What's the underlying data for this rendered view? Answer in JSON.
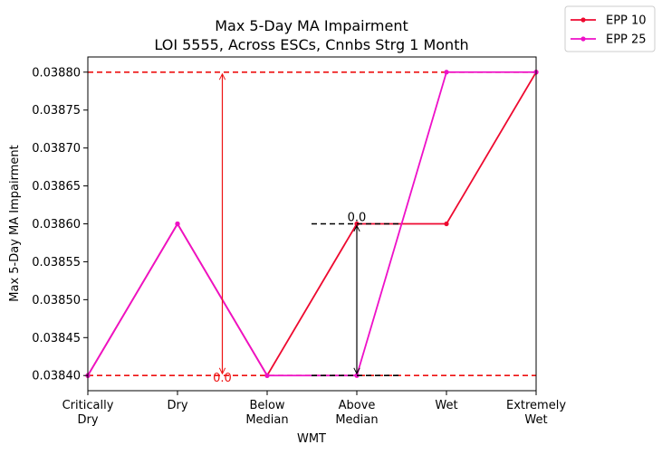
{
  "chart_data": {
    "type": "line",
    "title": "Max 5-Day MA Impairment",
    "subtitle": "LOI 5555, Across ESCs, Cnnbs Strg 1 Month",
    "xlabel": "WMT",
    "ylabel": "Max 5-Day MA Impairment",
    "categories": [
      "Critically\nDry",
      "Dry",
      "Below\nMedian",
      "Above\nMedian",
      "Wet",
      "Extremely\nWet"
    ],
    "ylim": [
      0.03838,
      0.03882
    ],
    "yticks": [
      "0.03840",
      "0.03845",
      "0.03850",
      "0.03855",
      "0.03860",
      "0.03865",
      "0.03870",
      "0.03875",
      "0.03880"
    ],
    "ytick_values": [
      0.0384,
      0.03845,
      0.0385,
      0.03855,
      0.0386,
      0.03865,
      0.0387,
      0.03875,
      0.0388
    ],
    "grid": false,
    "legend_position": "outside top-right",
    "series": [
      {
        "name": "EPP 10",
        "color": "#ee0a30",
        "values": [
          0.0384,
          0.0386,
          0.0384,
          0.0386,
          0.0386,
          0.0388
        ]
      },
      {
        "name": "EPP 25",
        "color": "#ee10c8",
        "values": [
          0.0384,
          0.0386,
          0.0384,
          0.0384,
          0.0388,
          0.0388
        ]
      }
    ],
    "reference_lines": [
      {
        "y": 0.0388,
        "color": "#ee1111",
        "style": "dashed"
      },
      {
        "y": 0.0384,
        "color": "#ee1111",
        "style": "dashed"
      }
    ],
    "annotations": [
      {
        "text": "0.0",
        "x_pos": 1.5,
        "y_from": 0.0384,
        "y_to": 0.0388,
        "color": "#ee1111"
      },
      {
        "text": "0.0",
        "x_pos": 3.0,
        "y_from": 0.0384,
        "y_to": 0.0386,
        "color": "#000000"
      }
    ]
  }
}
